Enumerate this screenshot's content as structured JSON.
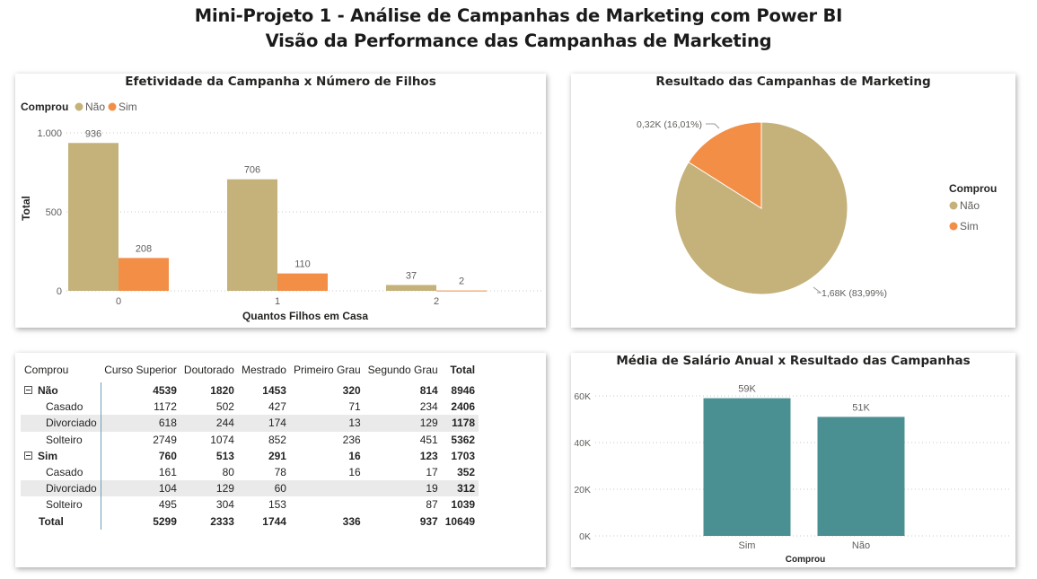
{
  "header": {
    "line1": "Mini-Projeto 1 - Análise de Campanhas de Marketing com Power BI",
    "line2": "Visão da Performance das Campanhas de Marketing"
  },
  "colors": {
    "nao": "#c4b27a",
    "sim": "#f28e45",
    "teal": "#4a9093"
  },
  "bar_panel": {
    "legend_title": "Comprou",
    "legend_nao": "Não",
    "legend_sim": "Sim"
  },
  "pie_panel": {
    "legend_title": "Comprou",
    "legend_nao": "Não",
    "legend_sim": "Sim"
  },
  "chart_data": [
    {
      "type": "bar",
      "title": "Efetividade da Campanha x Número de Filhos",
      "xlabel": "Quantos Filhos em Casa",
      "ylabel": "Total",
      "categories": [
        "0",
        "1",
        "2"
      ],
      "series": [
        {
          "name": "Não",
          "values": [
            936,
            706,
            37
          ],
          "labels": [
            "936",
            "706",
            "37"
          ]
        },
        {
          "name": "Sim",
          "values": [
            208,
            110,
            2
          ],
          "labels": [
            "208",
            "110",
            "2"
          ]
        }
      ],
      "ylim": [
        0,
        1000
      ],
      "yticks": [
        0,
        500,
        1000
      ],
      "ytick_labels": [
        "0",
        "500",
        "1.000"
      ],
      "grid": true,
      "legend": "top-left"
    },
    {
      "type": "pie",
      "title": "Resultado das Campanhas de Marketing",
      "slices": [
        {
          "name": "Não",
          "value": 83.99,
          "label": "1,68K (83,99%)"
        },
        {
          "name": "Sim",
          "value": 16.01,
          "label": "0,32K (16,01%)"
        }
      ],
      "legend": "right"
    },
    {
      "type": "bar",
      "title": "Média de Salário Anual x Resultado das Campanhas",
      "xlabel": "Comprou",
      "ylabel": "",
      "categories": [
        "Sim",
        "Não"
      ],
      "values": [
        59000,
        51000
      ],
      "value_labels": [
        "59K",
        "51K"
      ],
      "ylim": [
        0,
        60000
      ],
      "yticks": [
        0,
        20000,
        40000,
        60000
      ],
      "ytick_labels": [
        "0K",
        "20K",
        "40K",
        "60K"
      ],
      "grid": true
    },
    {
      "type": "table",
      "columns": [
        "Comprou",
        "Curso Superior",
        "Doutorado",
        "Mestrado",
        "Primeiro Grau",
        "Segundo Grau",
        "Total"
      ],
      "rows": [
        {
          "level": 0,
          "cells": [
            "Não",
            "4539",
            "1820",
            "1453",
            "320",
            "814",
            "8946"
          ]
        },
        {
          "level": 1,
          "cells": [
            "Casado",
            "1172",
            "502",
            "427",
            "71",
            "234",
            "2406"
          ]
        },
        {
          "level": 1,
          "cells": [
            "Divorciado",
            "618",
            "244",
            "174",
            "13",
            "129",
            "1178"
          ]
        },
        {
          "level": 1,
          "cells": [
            "Solteiro",
            "2749",
            "1074",
            "852",
            "236",
            "451",
            "5362"
          ]
        },
        {
          "level": 0,
          "cells": [
            "Sim",
            "760",
            "513",
            "291",
            "16",
            "123",
            "1703"
          ]
        },
        {
          "level": 1,
          "cells": [
            "Casado",
            "161",
            "80",
            "78",
            "16",
            "17",
            "352"
          ]
        },
        {
          "level": 1,
          "cells": [
            "Divorciado",
            "104",
            "129",
            "60",
            "",
            "19",
            "312"
          ]
        },
        {
          "level": 1,
          "cells": [
            "Solteiro",
            "495",
            "304",
            "153",
            "",
            "87",
            "1039"
          ]
        },
        {
          "level": 2,
          "cells": [
            "Total",
            "5299",
            "2333",
            "1744",
            "336",
            "937",
            "10649"
          ]
        }
      ]
    }
  ]
}
